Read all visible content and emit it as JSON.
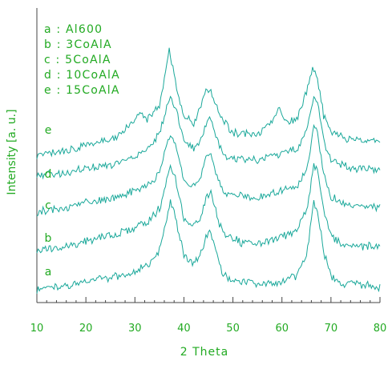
{
  "chart_data": {
    "type": "line",
    "xlabel": "2  Theta",
    "ylabel": "Intensity [a. u.]",
    "xlim": [
      10,
      80
    ],
    "x_ticks": [
      "10",
      "20",
      "30",
      "40",
      "50",
      "60",
      "70",
      "80"
    ],
    "yticks_shown": false,
    "legend": {
      "placement": "top-left",
      "entries": [
        "a : Al600",
        "b : 3CoAlA",
        "c : 5CoAlA",
        "d : 10CoAlA",
        "e : 15CoAlA"
      ]
    },
    "series": [
      {
        "name": "a",
        "points": [
          [
            10,
            0.05
          ],
          [
            16,
            0.09
          ],
          [
            20,
            0.14
          ],
          [
            26,
            0.18
          ],
          [
            30,
            0.24
          ],
          [
            33,
            0.32
          ],
          [
            35,
            0.45
          ],
          [
            36.5,
            0.78
          ],
          [
            37.3,
            0.98
          ],
          [
            38.2,
            0.82
          ],
          [
            40,
            0.4
          ],
          [
            42,
            0.32
          ],
          [
            43.5,
            0.42
          ],
          [
            44.5,
            0.6
          ],
          [
            45.5,
            0.64
          ],
          [
            46.5,
            0.45
          ],
          [
            48,
            0.2
          ],
          [
            52,
            0.12
          ],
          [
            56,
            0.1
          ],
          [
            60,
            0.14
          ],
          [
            63,
            0.2
          ],
          [
            65,
            0.42
          ],
          [
            66.5,
            0.95
          ],
          [
            67.2,
            0.9
          ],
          [
            68.5,
            0.45
          ],
          [
            70,
            0.2
          ],
          [
            72,
            0.12
          ],
          [
            75,
            0.1
          ],
          [
            80,
            0.08
          ]
        ]
      },
      {
        "name": "b",
        "points": [
          [
            10,
            0.1
          ],
          [
            16,
            0.14
          ],
          [
            20,
            0.2
          ],
          [
            26,
            0.26
          ],
          [
            30,
            0.33
          ],
          [
            33,
            0.4
          ],
          [
            35,
            0.52
          ],
          [
            36.5,
            0.8
          ],
          [
            37.3,
            0.95
          ],
          [
            38.2,
            0.82
          ],
          [
            40,
            0.42
          ],
          [
            42,
            0.35
          ],
          [
            43.5,
            0.45
          ],
          [
            44.5,
            0.62
          ],
          [
            45.5,
            0.68
          ],
          [
            46.5,
            0.5
          ],
          [
            48,
            0.26
          ],
          [
            52,
            0.18
          ],
          [
            56,
            0.18
          ],
          [
            60,
            0.24
          ],
          [
            63,
            0.3
          ],
          [
            65,
            0.5
          ],
          [
            66.5,
            0.95
          ],
          [
            67.2,
            0.92
          ],
          [
            68.5,
            0.5
          ],
          [
            70,
            0.26
          ],
          [
            72,
            0.18
          ],
          [
            75,
            0.16
          ],
          [
            80,
            0.14
          ]
        ]
      },
      {
        "name": "c",
        "points": [
          [
            10,
            0.1
          ],
          [
            16,
            0.15
          ],
          [
            20,
            0.2
          ],
          [
            26,
            0.25
          ],
          [
            30,
            0.32
          ],
          [
            33,
            0.38
          ],
          [
            35,
            0.5
          ],
          [
            36.5,
            0.78
          ],
          [
            37.3,
            0.9
          ],
          [
            38.2,
            0.8
          ],
          [
            40,
            0.42
          ],
          [
            42,
            0.36
          ],
          [
            43.5,
            0.46
          ],
          [
            44.5,
            0.64
          ],
          [
            45.5,
            0.7
          ],
          [
            46.5,
            0.52
          ],
          [
            48,
            0.3
          ],
          [
            52,
            0.26
          ],
          [
            56,
            0.26
          ],
          [
            60,
            0.32
          ],
          [
            63,
            0.34
          ],
          [
            65,
            0.52
          ],
          [
            66.5,
            0.95
          ],
          [
            67.2,
            0.92
          ],
          [
            68.5,
            0.5
          ],
          [
            70,
            0.26
          ],
          [
            72,
            0.2
          ],
          [
            75,
            0.18
          ],
          [
            80,
            0.16
          ]
        ]
      },
      {
        "name": "d",
        "points": [
          [
            10,
            0.15
          ],
          [
            16,
            0.18
          ],
          [
            20,
            0.22
          ],
          [
            26,
            0.26
          ],
          [
            30,
            0.34
          ],
          [
            33,
            0.42
          ],
          [
            35,
            0.56
          ],
          [
            36.5,
            0.82
          ],
          [
            37.3,
            0.95
          ],
          [
            38.2,
            0.84
          ],
          [
            40,
            0.5
          ],
          [
            42,
            0.42
          ],
          [
            43.5,
            0.52
          ],
          [
            44.5,
            0.68
          ],
          [
            45.5,
            0.72
          ],
          [
            46.5,
            0.55
          ],
          [
            48,
            0.35
          ],
          [
            52,
            0.3
          ],
          [
            56,
            0.32
          ],
          [
            60,
            0.38
          ],
          [
            63,
            0.4
          ],
          [
            65,
            0.6
          ],
          [
            66.5,
            0.92
          ],
          [
            67.2,
            0.9
          ],
          [
            68.5,
            0.5
          ],
          [
            70,
            0.3
          ],
          [
            72,
            0.25
          ],
          [
            75,
            0.22
          ],
          [
            80,
            0.2
          ]
        ]
      },
      {
        "name": "e",
        "points": [
          [
            10,
            0.12
          ],
          [
            16,
            0.16
          ],
          [
            20,
            0.2
          ],
          [
            26,
            0.26
          ],
          [
            29,
            0.38
          ],
          [
            31,
            0.48
          ],
          [
            32.5,
            0.42
          ],
          [
            35,
            0.55
          ],
          [
            36,
            0.75
          ],
          [
            37,
            1.0
          ],
          [
            38,
            0.78
          ],
          [
            40,
            0.45
          ],
          [
            42,
            0.38
          ],
          [
            43.5,
            0.52
          ],
          [
            44.5,
            0.68
          ],
          [
            45.5,
            0.66
          ],
          [
            47,
            0.48
          ],
          [
            50,
            0.3
          ],
          [
            55,
            0.3
          ],
          [
            58,
            0.4
          ],
          [
            59.5,
            0.5
          ],
          [
            61,
            0.4
          ],
          [
            63,
            0.42
          ],
          [
            65,
            0.65
          ],
          [
            66.3,
            0.85
          ],
          [
            67.2,
            0.78
          ],
          [
            68.5,
            0.45
          ],
          [
            70,
            0.32
          ],
          [
            73,
            0.26
          ],
          [
            80,
            0.24
          ]
        ]
      }
    ]
  }
}
